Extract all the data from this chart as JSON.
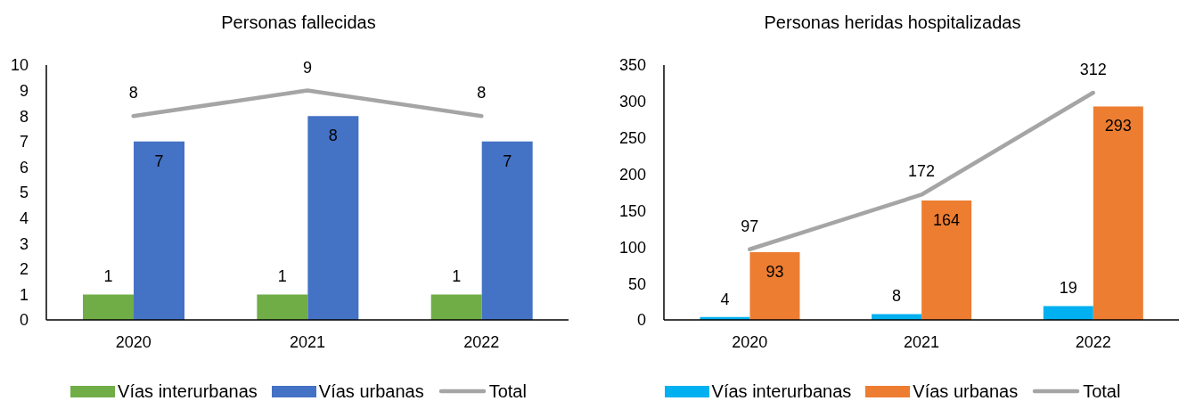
{
  "chart_data": [
    {
      "type": "bar",
      "title": "Personas fallecidas",
      "categories": [
        "2020",
        "2021",
        "2022"
      ],
      "series": [
        {
          "name": "Vías interurbanas",
          "color": "#70ad47",
          "values": [
            1,
            1,
            1
          ]
        },
        {
          "name": "Vías urbanas",
          "color": "#4472c4",
          "values": [
            7,
            8,
            7
          ]
        },
        {
          "name": "Total",
          "type": "line",
          "color": "#a5a5a5",
          "values": [
            8,
            9,
            8
          ]
        }
      ],
      "ylim": [
        0,
        10
      ],
      "yticks": [
        0,
        1,
        2,
        3,
        4,
        5,
        6,
        7,
        8,
        9,
        10
      ],
      "legend": "bottom",
      "data_labels": true,
      "line_style": "solid"
    },
    {
      "type": "bar",
      "title": "Personas heridas hospitalizadas",
      "categories": [
        "2020",
        "2021",
        "2022"
      ],
      "series": [
        {
          "name": "Vías interurbanas",
          "color": "#00b0f0",
          "values": [
            4,
            8,
            19
          ]
        },
        {
          "name": "Vías urbanas",
          "color": "#ed7d31",
          "values": [
            93,
            164,
            293
          ]
        },
        {
          "name": "Total",
          "type": "line",
          "color": "#a5a5a5",
          "values": [
            97,
            172,
            312
          ]
        }
      ],
      "ylim": [
        0,
        350
      ],
      "yticks": [
        0,
        50,
        100,
        150,
        200,
        250,
        300,
        350
      ],
      "legend": "bottom",
      "data_labels": true,
      "line_style": "solid"
    }
  ]
}
